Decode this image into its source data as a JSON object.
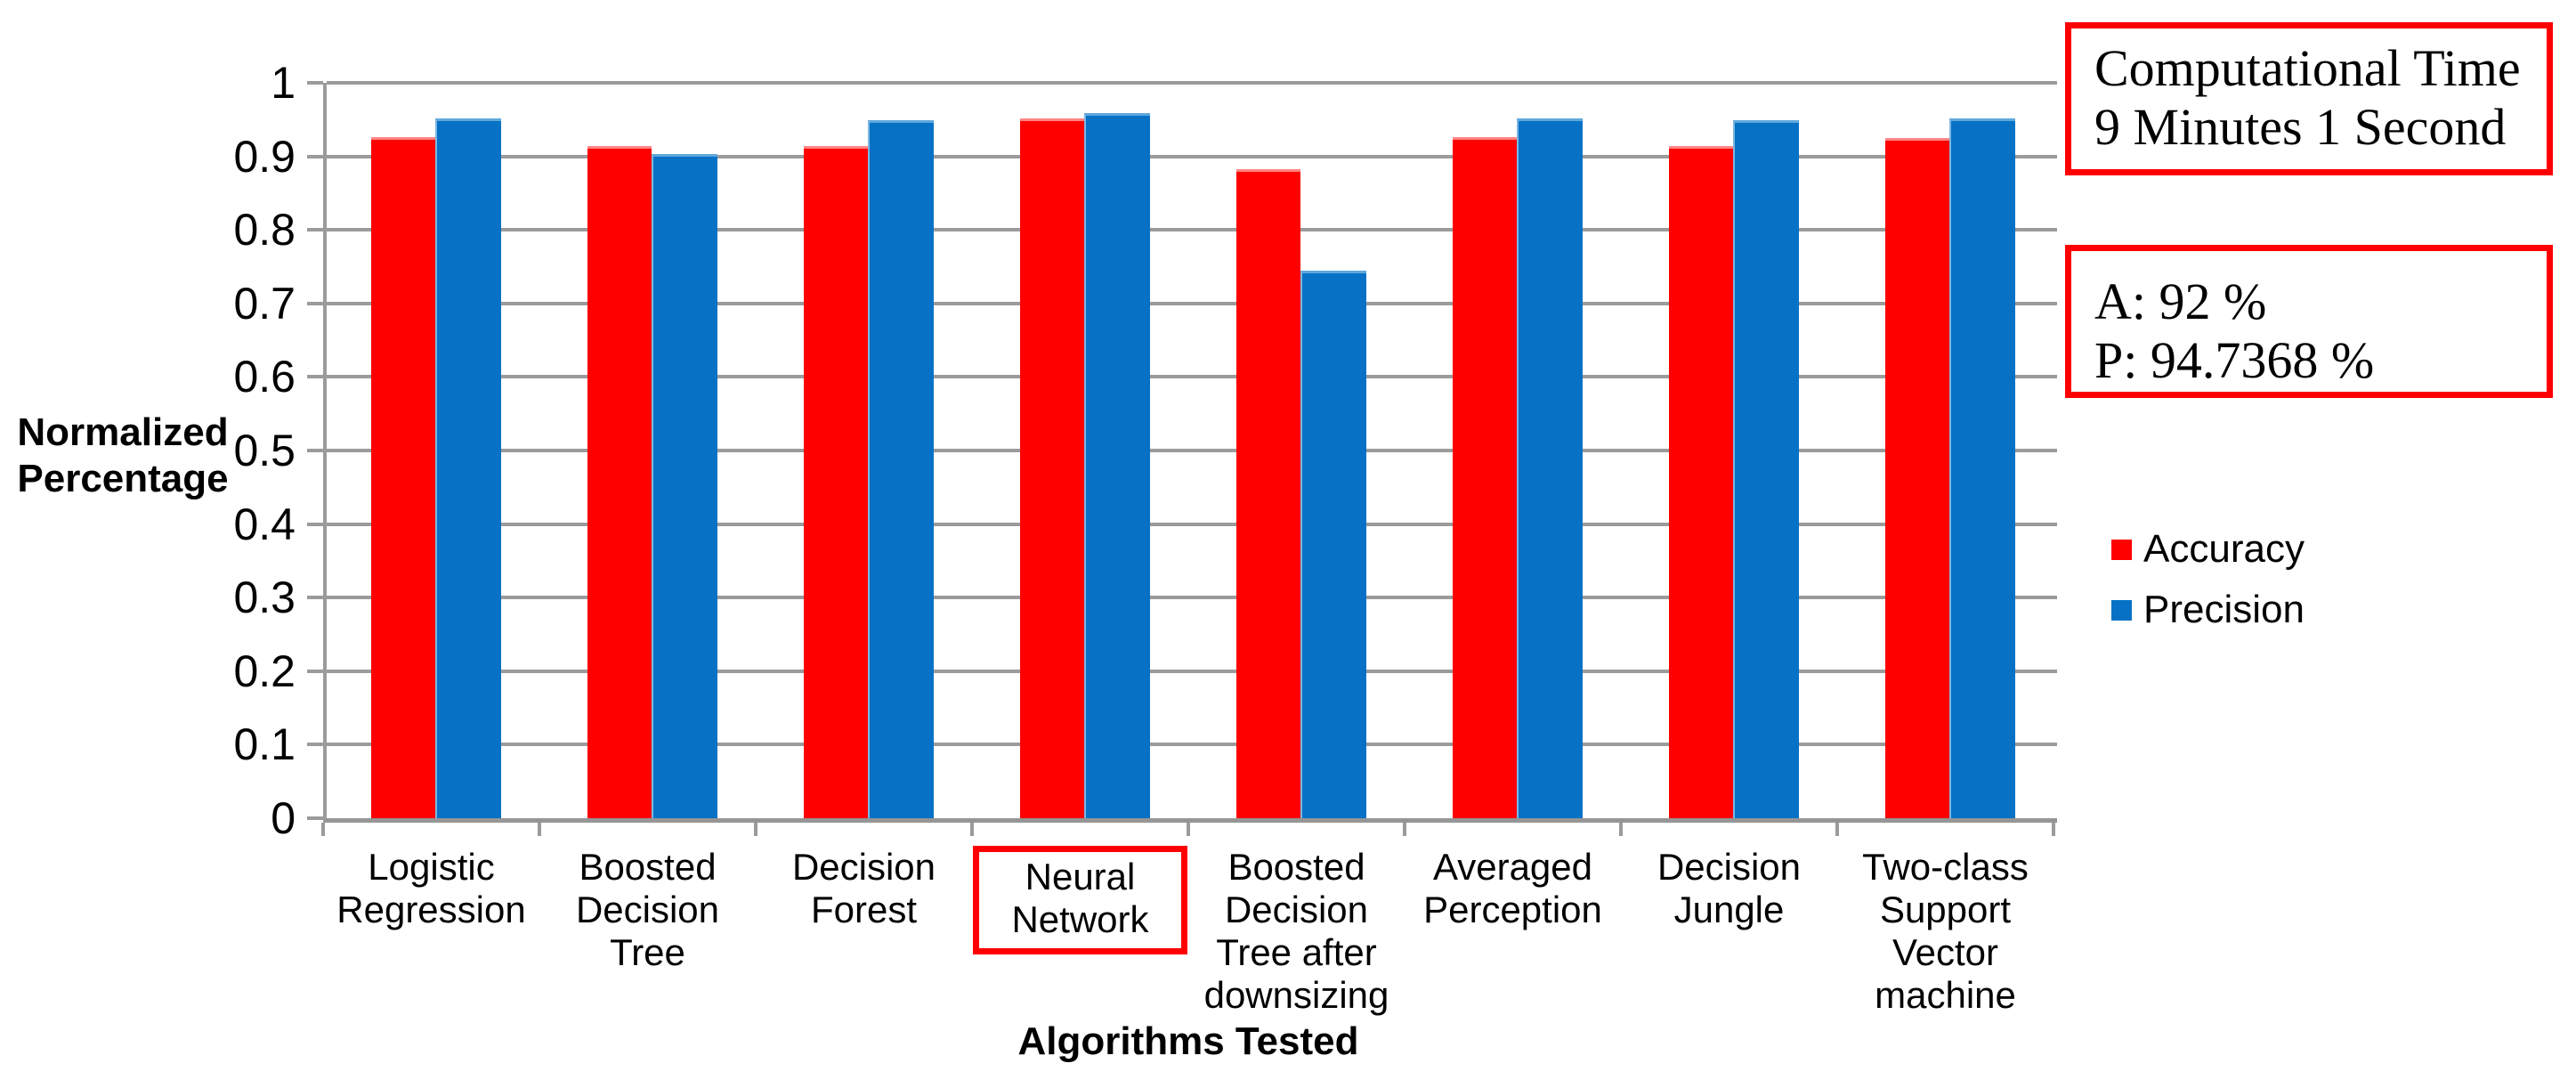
{
  "chart_data": {
    "type": "bar",
    "title": "",
    "xlabel": "Algorithms Tested",
    "ylabel": "Normalized Percentage",
    "ylim": [
      0,
      1
    ],
    "ytick_labels": [
      "0",
      "0.1",
      "0.2",
      "0.3",
      "0.4",
      "0.5",
      "0.6",
      "0.7",
      "0.8",
      "0.9",
      "1"
    ],
    "grid": true,
    "legend_position": "right",
    "categories": [
      "Logistic Regression",
      "Boosted Decision Tree",
      "Decision Forest",
      "Neural Network",
      "Boosted Decision Tree after downsizing",
      "Averaged Perception",
      "Decision Jungle",
      "Two-class Support Vector machine"
    ],
    "highlighted_category_index": 3,
    "series": [
      {
        "name": "Accuracy",
        "color": "#ff0000",
        "values": [
          0.922,
          0.911,
          0.911,
          0.948,
          0.879,
          0.922,
          0.91,
          0.921
        ]
      },
      {
        "name": "Precision",
        "color": "#0772c5",
        "values": [
          0.948,
          0.899,
          0.945,
          0.955,
          0.741,
          0.948,
          0.945,
          0.948
        ]
      }
    ]
  },
  "annotations": {
    "computation_box": {
      "lines": [
        "Computational Time",
        "9 Minutes 1 Second"
      ]
    },
    "result_box": {
      "lines": [
        "A: 92 %",
        "P: 94.7368 %"
      ]
    }
  },
  "colors": {
    "accuracy": "#ff0000",
    "precision": "#0772c5",
    "annotation_border": "#ff0000",
    "highlight_border": "#ff0000",
    "gridline": "#9b9b9b",
    "axis": "#969696",
    "text": "#000000"
  }
}
